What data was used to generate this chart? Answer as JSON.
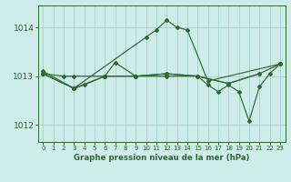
{
  "background_color": "#ceecea",
  "grid_color": "#aed4d0",
  "line_color": "#2d6a2d",
  "marker_color": "#2d6a2d",
  "xlabel": "Graphe pression niveau de la mer (hPa)",
  "ylim": [
    1011.65,
    1014.45
  ],
  "xlim": [
    -0.5,
    23.5
  ],
  "yticks": [
    1012,
    1013,
    1014
  ],
  "xticks": [
    0,
    1,
    2,
    3,
    4,
    5,
    6,
    7,
    8,
    9,
    10,
    11,
    12,
    13,
    14,
    15,
    16,
    17,
    18,
    19,
    20,
    21,
    22,
    23
  ],
  "series1_x": [
    0,
    3,
    10,
    11,
    12,
    13,
    14,
    16,
    23
  ],
  "series1_y": [
    1013.1,
    1012.75,
    1013.8,
    1013.95,
    1014.15,
    1014.0,
    1013.95,
    1012.9,
    1013.25
  ],
  "series2_x": [
    0,
    2,
    3,
    6,
    7,
    9,
    12,
    15,
    18,
    21
  ],
  "series2_y": [
    1013.05,
    1013.0,
    1013.0,
    1013.0,
    1013.28,
    1013.0,
    1013.0,
    1013.0,
    1012.85,
    1013.05
  ],
  "series3_x": [
    0,
    3,
    4,
    6,
    9,
    12,
    15,
    18,
    21,
    23
  ],
  "series3_y": [
    1013.05,
    1012.75,
    1012.82,
    1013.0,
    1013.0,
    1013.05,
    1013.0,
    1012.85,
    1013.05,
    1013.25
  ],
  "series4_x": [
    0,
    3,
    6,
    9,
    12,
    15,
    16,
    17,
    18,
    19,
    20,
    21,
    22,
    23
  ],
  "series4_y": [
    1013.05,
    1012.75,
    1013.0,
    1013.0,
    1013.05,
    1013.0,
    1012.82,
    1012.68,
    1012.82,
    1012.68,
    1012.08,
    1012.78,
    1013.05,
    1013.25
  ],
  "lw": 0.85,
  "ms": 2.0
}
